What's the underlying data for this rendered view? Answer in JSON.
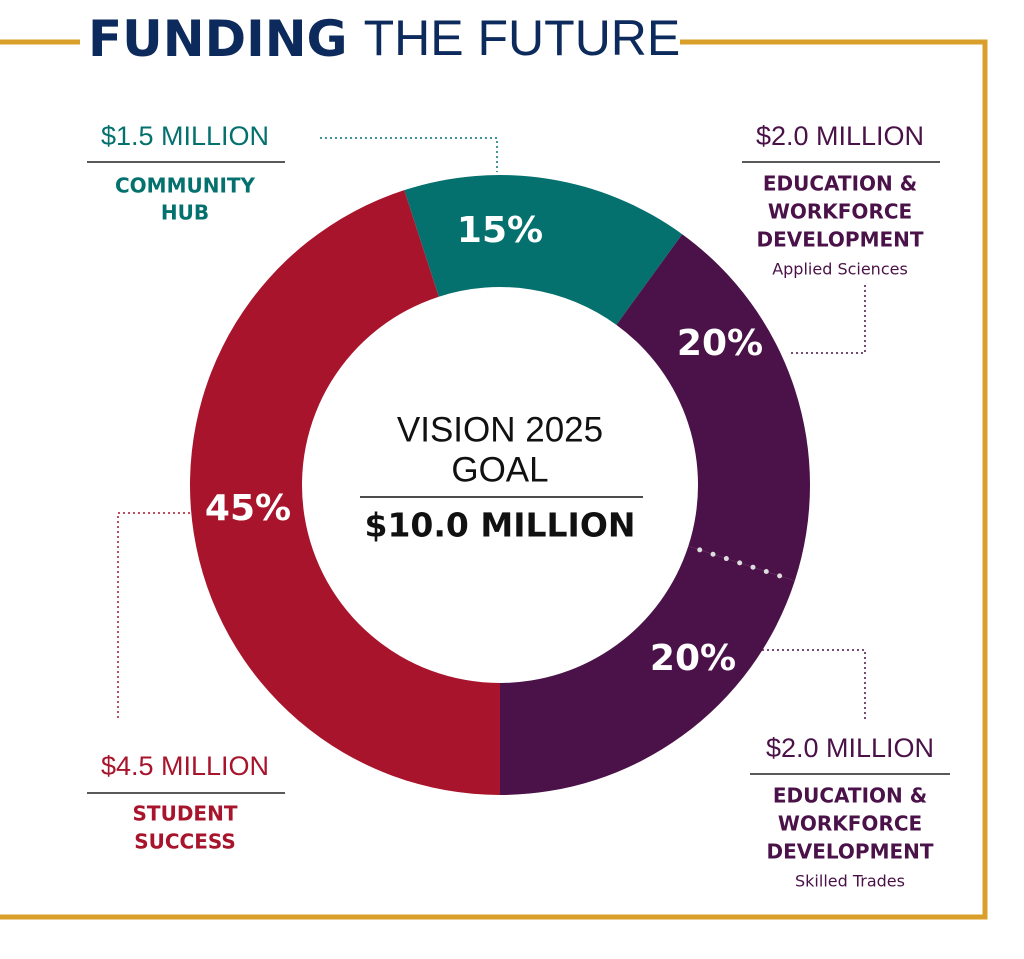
{
  "chart_data": {
    "type": "pie",
    "hole": true,
    "title": [
      "FUNDING",
      "THE FUTURE"
    ],
    "center_text": [
      "VISION 2025",
      "GOAL",
      "$10.0 MILLION"
    ],
    "values": [
      15,
      20,
      20,
      45
    ],
    "value_labels": [
      "15%",
      "20%",
      "20%",
      "45%"
    ],
    "colors": [
      "#05716f",
      "#4a1248",
      "#4a1248",
      "#a8142b"
    ],
    "annotations": [
      {
        "amount": "$1.5 MILLION",
        "lines": [
          "COMMUNITY",
          "HUB"
        ]
      },
      {
        "amount": "$2.0 MILLION",
        "lines": [
          "EDUCATION &",
          "WORKFORCE",
          "DEVELOPMENT"
        ],
        "note": "Applied Sciences"
      },
      {
        "amount": "$2.0 MILLION",
        "lines": [
          "EDUCATION &",
          "WORKFORCE",
          "DEVELOPMENT"
        ],
        "note": "Skilled Trades"
      },
      {
        "amount": "$4.5 MILLION",
        "lines": [
          "STUDENT",
          "SUCCESS"
        ]
      }
    ]
  }
}
